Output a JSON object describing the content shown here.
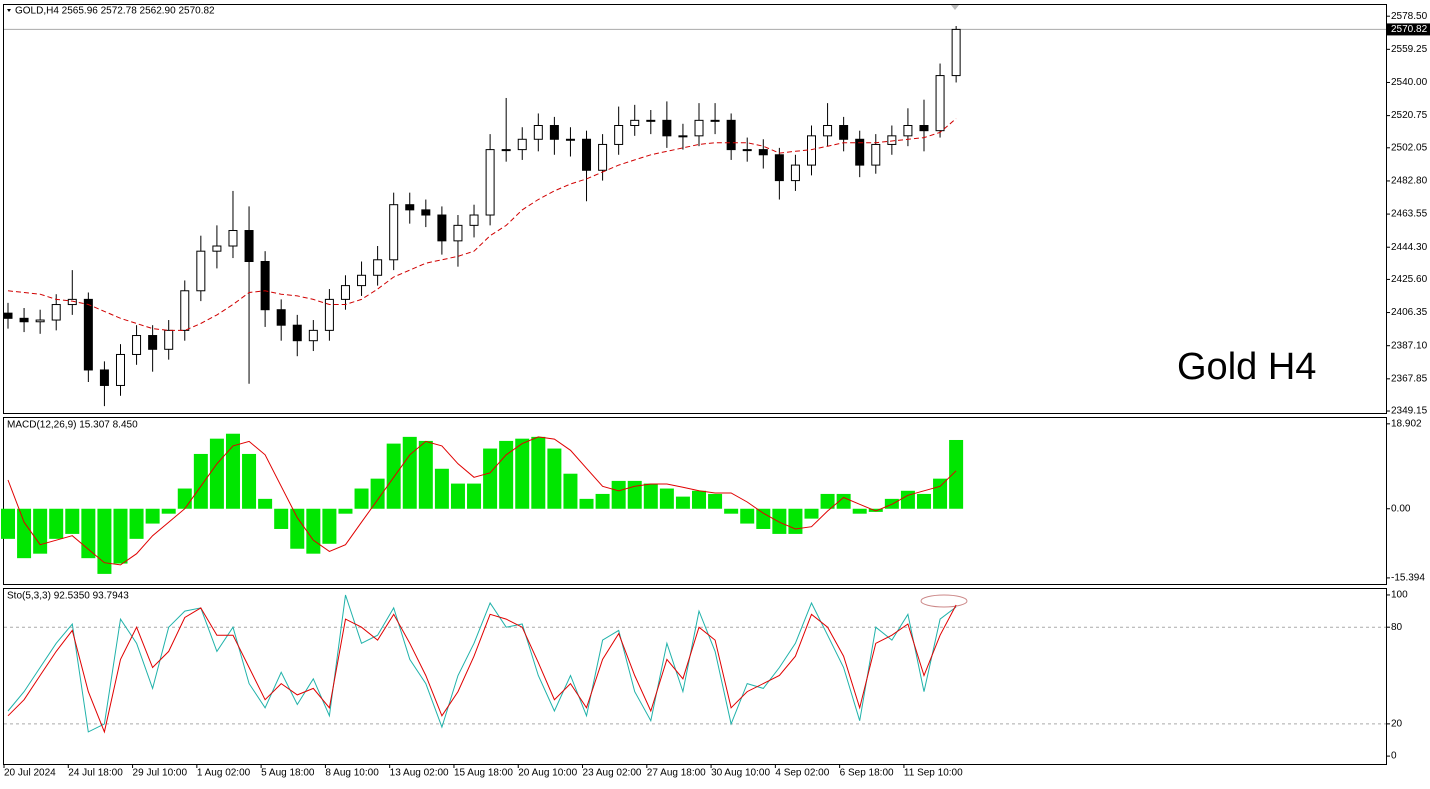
{
  "chart_data": [
    {
      "type": "candlestick",
      "title": "GOLD,H4  2565.96 2572.78 2562.90 2570.82",
      "annotation": "Gold H4",
      "categories": [
        "20 Jul 2024",
        null,
        null,
        null,
        "24 Jul 18:00",
        null,
        null,
        null,
        "29 Jul 10:00",
        null,
        null,
        null,
        "1 Aug 02:00",
        null,
        null,
        null,
        "5 Aug 18:00",
        null,
        null,
        null,
        "8 Aug 10:00",
        null,
        null,
        null,
        "13 Aug 02:00",
        null,
        null,
        null,
        "15 Aug 18:00",
        null,
        null,
        null,
        "20 Aug 10:00",
        null,
        null,
        null,
        "23 Aug 02:00",
        null,
        null,
        null,
        "27 Aug 18:00",
        null,
        null,
        null,
        "30 Aug 10:00",
        null,
        null,
        null,
        "4 Sep 02:00",
        null,
        null,
        null,
        "6 Sep 18:00",
        null,
        null,
        null,
        "11 Sep 10:00",
        null,
        null,
        null
      ],
      "open": [
        2406,
        2403,
        2401,
        2402,
        2411,
        2414,
        2373,
        2364,
        2382,
        2393,
        2385,
        2396,
        2419,
        2442,
        2445,
        2454,
        2436,
        2408,
        2399,
        2390,
        2396,
        2414,
        2422,
        2428,
        2437,
        2469,
        2466,
        2463,
        2448,
        2457,
        2463,
        2501,
        2501,
        2507,
        2515,
        2507,
        2507,
        2489,
        2504,
        2515,
        2518,
        2518,
        2509,
        2509,
        2518,
        2518,
        2501,
        2501,
        2498,
        2483,
        2492,
        2509,
        2515,
        2507,
        2492,
        2504,
        2509,
        2515,
        2512,
        2544
      ],
      "high": [
        2412,
        2409,
        2408,
        2417,
        2431,
        2418,
        2378,
        2388,
        2399,
        2399,
        2402,
        2425,
        2451,
        2457,
        2477,
        2468,
        2442,
        2414,
        2405,
        2402,
        2420,
        2428,
        2436,
        2445,
        2476,
        2476,
        2472,
        2468,
        2463,
        2469,
        2510,
        2531,
        2514,
        2522,
        2520,
        2514,
        2512,
        2510,
        2526,
        2527,
        2524,
        2529,
        2516,
        2528,
        2528,
        2522,
        2508,
        2507,
        2502,
        2498,
        2515,
        2528,
        2520,
        2512,
        2510,
        2515,
        2525,
        2530,
        2551,
        2572.78
      ],
      "low": [
        2397,
        2395,
        2394,
        2396,
        2405,
        2366,
        2352,
        2358,
        2376,
        2372,
        2379,
        2390,
        2413,
        2432,
        2438,
        2365,
        2398,
        2390,
        2381,
        2384,
        2390,
        2408,
        2416,
        2422,
        2431,
        2458,
        2456,
        2440,
        2433,
        2450,
        2457,
        2494,
        2495,
        2500,
        2498,
        2497,
        2471,
        2483,
        2498,
        2509,
        2510,
        2502,
        2501,
        2503,
        2510,
        2495,
        2494,
        2490,
        2472,
        2477,
        2486,
        2503,
        2500,
        2485,
        2487,
        2498,
        2503,
        2500,
        2508,
        2540
      ],
      "close": [
        2403,
        2401,
        2402,
        2411,
        2414,
        2373,
        2364,
        2382,
        2393,
        2385,
        2396,
        2419,
        2442,
        2445,
        2454,
        2436,
        2408,
        2399,
        2390,
        2396,
        2414,
        2422,
        2428,
        2437,
        2469,
        2466,
        2463,
        2448,
        2457,
        2463,
        2501,
        2501,
        2507,
        2515,
        2507,
        2507,
        2489,
        2504,
        2515,
        2518,
        2518,
        2509,
        2509,
        2518,
        2518,
        2501,
        2501,
        2498,
        2483,
        2492,
        2509,
        2515,
        2507,
        2492,
        2504,
        2509,
        2515,
        2512,
        2544,
        2570.82
      ],
      "up_color": "#ffffff",
      "down_color": "#000000",
      "moving_average": {
        "color": "#d00000",
        "values": [
          2419,
          2418,
          2417,
          2414,
          2413,
          2411,
          2407,
          2403,
          2400,
          2397,
          2396,
          2396,
          2400,
          2405,
          2411,
          2418,
          2419,
          2417,
          2416,
          2414,
          2411,
          2411,
          2414,
          2420,
          2427,
          2431,
          2435,
          2437,
          2439,
          2442,
          2451,
          2457,
          2466,
          2472,
          2477,
          2481,
          2484,
          2488,
          2492,
          2495,
          2498,
          2500,
          2502,
          2504,
          2505,
          2505,
          2505,
          2503,
          2499,
          2500,
          2501,
          2503,
          2505,
          2505,
          2505,
          2506,
          2507,
          2508,
          2511,
          2519
        ]
      },
      "ylim": [
        2348,
        2585
      ],
      "yticks": [
        {
          "value": 2578.5,
          "label": "2578.50"
        },
        2559.25,
        {
          "value": 2540,
          "label": "2540.00"
        },
        2520.75,
        2502.05,
        {
          "value": 2482.8,
          "label": "2482.80"
        },
        2463.55,
        {
          "value": 2444.3,
          "label": "2444.30"
        },
        {
          "value": 2425.6,
          "label": "2425.60"
        },
        2406.35,
        {
          "value": 2387.1,
          "label": "2387.10"
        },
        2367.85,
        2349.15
      ]
    },
    {
      "type": "macd",
      "title": "MACD(12,26,9) 15.307 8.450",
      "histogram": {
        "color": "#00e600",
        "values": [
          -6.7,
          -11,
          -10,
          -6.7,
          -5.6,
          -11,
          -14.5,
          -12.2,
          -6.7,
          -3.3,
          -1.1,
          4.5,
          12.2,
          15.6,
          16.7,
          12.2,
          2.2,
          -4.5,
          -8.9,
          -10,
          -7.8,
          -1.1,
          4.5,
          6.7,
          14.5,
          16,
          15.1,
          8.9,
          5.6,
          5.6,
          13.4,
          15.1,
          15.6,
          16,
          13.4,
          7.8,
          2.2,
          3.3,
          6.2,
          6.2,
          5.6,
          4.5,
          2.7,
          4,
          3.3,
          -1.1,
          -3.3,
          -4.5,
          -5.6,
          -5.6,
          -2.2,
          3.3,
          3.3,
          -1.1,
          -0.7,
          2.2,
          4,
          3.3,
          6.7,
          15.307
        ]
      },
      "signal": {
        "color": "#e00000",
        "values": [
          6.4,
          -3,
          -8,
          -7,
          -6,
          -9,
          -12,
          -12.5,
          -10,
          -6,
          -3,
          0,
          5,
          10,
          14,
          15,
          12,
          5,
          -2,
          -7,
          -9.5,
          -8,
          -3,
          2,
          7,
          12,
          15,
          14,
          10,
          7,
          8,
          12,
          14.5,
          16,
          15.5,
          13,
          9,
          5,
          4,
          5,
          5.5,
          5.5,
          4.8,
          4,
          3.5,
          3.5,
          1.5,
          -1,
          -3,
          -4.5,
          -4,
          -0.5,
          2.5,
          1,
          -0.5,
          1,
          3,
          4,
          5,
          8.45
        ]
      },
      "ylim": [
        -16.75,
        20.2
      ],
      "yticks": [
        18.902,
        {
          "value": 0,
          "label": "0.00"
        },
        -15.394
      ]
    },
    {
      "type": "stochastic",
      "title": "Sto(5,3,3) 92.5350 93.7943",
      "series": [
        {
          "color": "#20b2aa",
          "values": [
            28,
            40,
            55,
            70,
            82,
            15,
            20,
            85,
            70,
            42,
            80,
            90,
            92,
            65,
            80,
            45,
            30,
            52,
            32,
            48,
            25,
            100,
            70,
            75,
            92,
            60,
            45,
            18,
            50,
            70,
            95,
            80,
            82,
            50,
            28,
            50,
            25,
            72,
            78,
            40,
            22,
            70,
            40,
            90,
            65,
            20,
            45,
            42,
            55,
            70,
            95,
            75,
            55,
            22,
            80,
            72,
            88,
            40,
            85,
            92.535
          ]
        },
        {
          "color": "#e00000",
          "values": [
            25,
            35,
            50,
            65,
            78,
            40,
            15,
            60,
            80,
            55,
            65,
            86,
            92,
            75,
            75,
            55,
            35,
            45,
            38,
            42,
            30,
            85,
            80,
            72,
            88,
            70,
            50,
            25,
            40,
            62,
            88,
            85,
            80,
            58,
            35,
            45,
            30,
            60,
            76,
            50,
            28,
            60,
            48,
            80,
            72,
            30,
            40,
            45,
            50,
            62,
            88,
            80,
            62,
            30,
            70,
            75,
            82,
            50,
            75,
            93.7943
          ]
        }
      ],
      "levels": [
        80,
        20
      ],
      "ylim": [
        -4.9,
        103.7
      ],
      "yticks": [
        100,
        80,
        20,
        0
      ]
    }
  ]
}
